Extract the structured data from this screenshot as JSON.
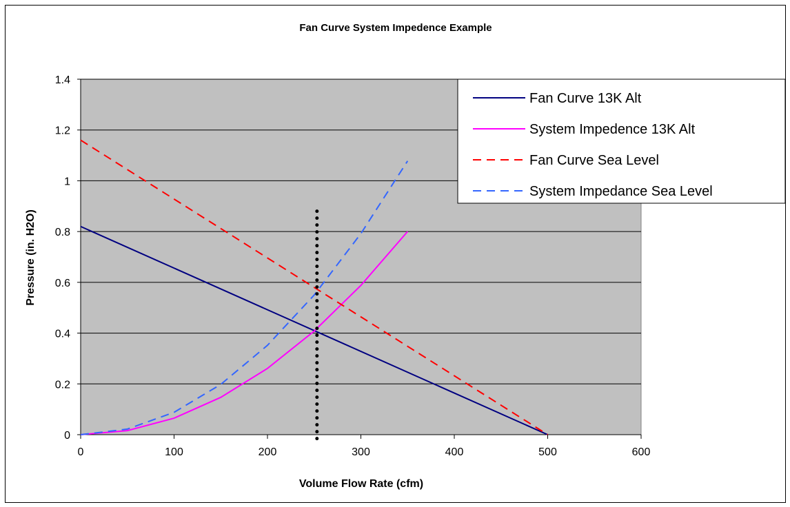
{
  "chart_data": {
    "type": "line",
    "title": "Fan Curve System Impedence Example",
    "xlabel": "Volume Flow Rate (cfm)",
    "ylabel": "Pressure (in. H2O)",
    "xlim": [
      0,
      600
    ],
    "ylim": [
      0,
      1.4
    ],
    "x_ticks": [
      "0",
      "100",
      "200",
      "300",
      "400",
      "500",
      "600"
    ],
    "y_ticks": [
      "0",
      "0.2",
      "0.4",
      "0.6",
      "0.8",
      "1",
      "1.2",
      "1.4"
    ],
    "grid": "horizontal",
    "legend_position": "top-right",
    "plot_background": "#c0c0c0",
    "series": [
      {
        "name": "Fan Curve 13K Alt",
        "color": "#000080",
        "dash": "solid",
        "x": [
          0,
          500
        ],
        "y": [
          0.82,
          0
        ]
      },
      {
        "name": "System Impedence 13K Alt",
        "color": "#ff00ff",
        "dash": "solid",
        "x": [
          0,
          50,
          100,
          150,
          200,
          250,
          300,
          350
        ],
        "y": [
          0,
          0.016,
          0.065,
          0.147,
          0.261,
          0.408,
          0.588,
          0.8
        ]
      },
      {
        "name": "Fan Curve Sea Level",
        "color": "#ff0000",
        "dash": "dashed",
        "x": [
          0,
          500
        ],
        "y": [
          1.16,
          0
        ]
      },
      {
        "name": "System Impedance Sea Level",
        "color": "#3366ff",
        "dash": "dashed",
        "x": [
          0,
          50,
          100,
          150,
          200,
          250,
          300,
          350
        ],
        "y": [
          0,
          0.022,
          0.088,
          0.198,
          0.352,
          0.55,
          0.792,
          1.078
        ]
      }
    ],
    "reference_line": {
      "type": "vertical",
      "style": "dotted",
      "color": "#000000",
      "x": 253,
      "y_range": [
        -0.03,
        0.88
      ]
    }
  }
}
